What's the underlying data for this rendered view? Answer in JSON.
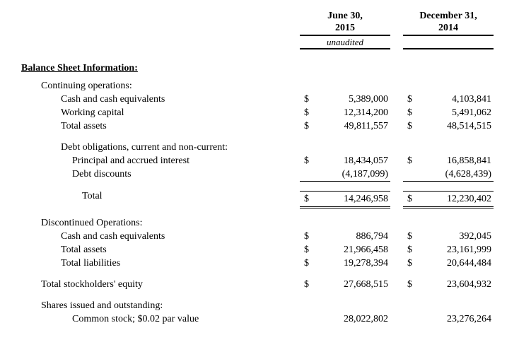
{
  "colors": {
    "text": "#000000",
    "background": "#ffffff",
    "rule": "#000000"
  },
  "header": {
    "col1": {
      "line1": "June 30,",
      "line2": "2015",
      "note": "unaudited"
    },
    "col2": {
      "line1": "December 31,",
      "line2": "2014",
      "note": ""
    }
  },
  "title": "Balance Sheet Information:",
  "table": {
    "rows": [
      {
        "label": "Continuing operations:",
        "indent": 1
      },
      {
        "label": "Cash and cash equivalents",
        "indent": 2,
        "cur1": "$",
        "val1": "5,389,000",
        "cur2": "$",
        "val2": "4,103,841"
      },
      {
        "label": "Working capital",
        "indent": 2,
        "cur1": "$",
        "val1": "12,314,200",
        "cur2": "$",
        "val2": "5,491,062"
      },
      {
        "label": "Total assets",
        "indent": 2,
        "cur1": "$",
        "val1": "49,811,557",
        "cur2": "$",
        "val2": "48,514,515"
      },
      {
        "label": "Debt obligations, current and non-current:",
        "indent": 2,
        "space_before": true
      },
      {
        "label": "Principal and accrued interest",
        "indent": 3,
        "cur1": "$",
        "val1": "18,434,057",
        "cur2": "$",
        "val2": "16,858,841"
      },
      {
        "label": "Debt discounts",
        "indent": 3,
        "val1": "(4,187,099)",
        "val2": "(4,628,439)",
        "style": "underline"
      },
      {
        "label": "Total",
        "indent": 4,
        "cur1": "$",
        "val1": "14,246,958",
        "cur2": "$",
        "val2": "12,230,402",
        "style": "total",
        "space_before": true
      },
      {
        "label": "Discontinued Operations:",
        "indent": 1,
        "space_before": true
      },
      {
        "label": "Cash and cash equivalents",
        "indent": 2,
        "cur1": "$",
        "val1": "886,794",
        "cur2": "$",
        "val2": "392,045"
      },
      {
        "label": "Total assets",
        "indent": 2,
        "cur1": "$",
        "val1": "21,966,458",
        "cur2": "$",
        "val2": "23,161,999"
      },
      {
        "label": "Total liabilities",
        "indent": 2,
        "cur1": "$",
        "val1": "19,278,394",
        "cur2": "$",
        "val2": "20,644,484"
      },
      {
        "label": "Total stockholders' equity",
        "indent": 1,
        "cur1": "$",
        "val1": "27,668,515",
        "cur2": "$",
        "val2": "23,604,932",
        "space_before": true
      },
      {
        "label": "Shares issued and outstanding:",
        "indent": 1,
        "space_before": true
      },
      {
        "label": "Common stock; $0.02 par value",
        "indent": 3,
        "val1": "28,022,802",
        "val2": "23,276,264"
      }
    ]
  }
}
